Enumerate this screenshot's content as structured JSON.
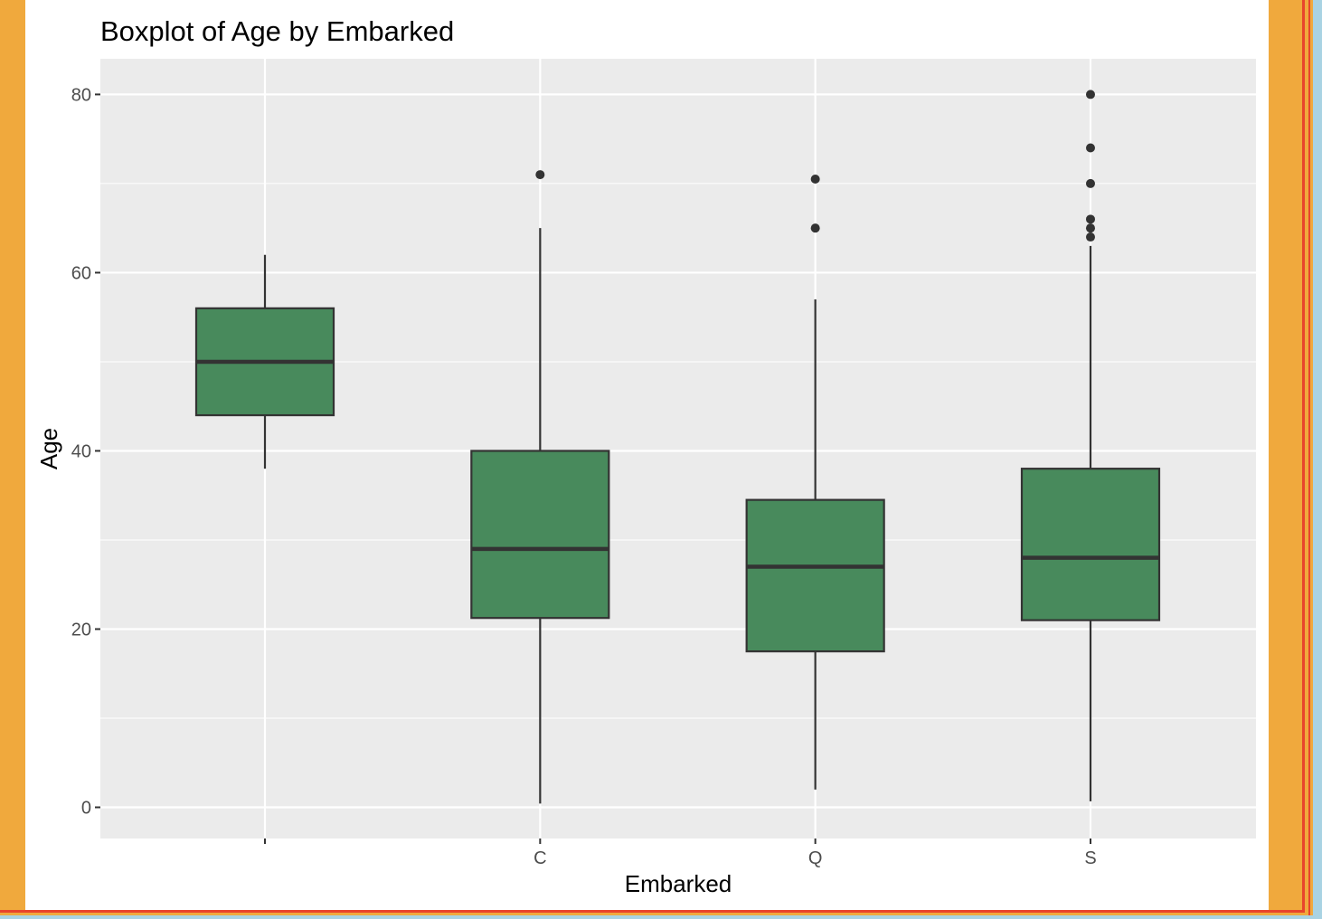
{
  "colors": {
    "page_background": "#F0A93D",
    "panel_background": "#EBEBEB",
    "grid": "#FFFFFF",
    "box_fill": "#488A5C",
    "box_stroke": "#333333",
    "outlier": "#333333",
    "edge_red": "#E8452C",
    "edge_blue": "#A9D3E3"
  },
  "chart_data": {
    "type": "boxplot",
    "title": "Boxplot of Age by Embarked",
    "xlabel": "Embarked",
    "ylabel": "Age",
    "ylim": [
      -3.5,
      84
    ],
    "yticks": [
      0,
      20,
      40,
      60,
      80
    ],
    "grid": true,
    "categories": [
      "",
      "C",
      "Q",
      "S"
    ],
    "boxes": [
      {
        "category": "",
        "whisker_low": 38,
        "q1": 44,
        "median": 50,
        "q3": 56,
        "whisker_high": 62,
        "outliers": []
      },
      {
        "category": "C",
        "whisker_low": 0.42,
        "q1": 21.25,
        "median": 29,
        "q3": 40,
        "whisker_high": 65,
        "outliers": [
          71
        ]
      },
      {
        "category": "Q",
        "whisker_low": 2,
        "q1": 17.5,
        "median": 27,
        "q3": 34.5,
        "whisker_high": 57,
        "outliers": [
          65,
          70.5
        ]
      },
      {
        "category": "S",
        "whisker_low": 0.67,
        "q1": 21,
        "median": 28,
        "q3": 38,
        "whisker_high": 63,
        "outliers": [
          64,
          65,
          66,
          70,
          74,
          80
        ]
      }
    ]
  }
}
